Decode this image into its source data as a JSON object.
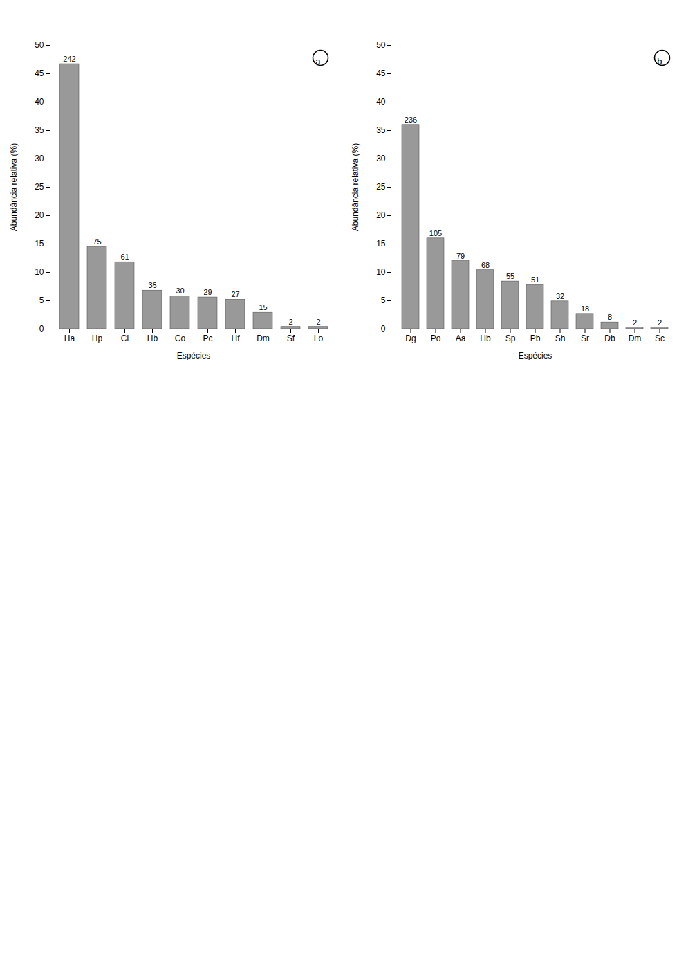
{
  "chart_data": [
    {
      "type": "bar",
      "categories": [
        "Ha",
        "Hp",
        "Ci",
        "Hb",
        "Co",
        "Pc",
        "Hf",
        "Dm",
        "Sf",
        "Lo"
      ],
      "values": [
        46.7,
        14.5,
        11.8,
        6.8,
        5.8,
        5.6,
        5.2,
        2.9,
        0.4,
        0.4
      ],
      "counts": [
        242,
        75,
        61,
        35,
        30,
        29,
        27,
        15,
        2,
        2
      ],
      "x_label": "Espécies",
      "y_label": "Abundância relativa (%)",
      "ylim": [
        0,
        50
      ],
      "yticks": [
        0,
        5,
        10,
        15,
        20,
        25,
        30,
        35,
        40,
        45,
        50
      ],
      "color": "#999999",
      "annotations": [
        "a"
      ]
    },
    {
      "type": "bar",
      "categories": [
        "Dg",
        "Po",
        "Aa",
        "Hb",
        "Sp",
        "Pb",
        "Sh",
        "Sr",
        "Db",
        "Dm",
        "Sc"
      ],
      "values": [
        36.0,
        16.0,
        12.0,
        10.4,
        8.4,
        7.8,
        4.9,
        2.7,
        1.2,
        0.3,
        0.3
      ],
      "counts": [
        236,
        105,
        79,
        68,
        55,
        51,
        32,
        18,
        8,
        2,
        2
      ],
      "x_label": "Espécies",
      "y_label": "Abundância relativa (%)",
      "ylim": [
        0,
        50
      ],
      "yticks": [
        0,
        5,
        10,
        15,
        20,
        25,
        30,
        35,
        40,
        45,
        50
      ],
      "color": "#999999",
      "annotations": [
        "b"
      ]
    }
  ]
}
